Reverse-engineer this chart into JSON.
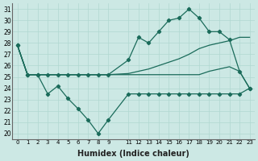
{
  "xlabel": "Humidex (Indice chaleur)",
  "bg_color": "#cce8e4",
  "line_color": "#1a6b5a",
  "grid_color": "#b0d8d0",
  "xlim": [
    -0.5,
    23.5
  ],
  "ylim": [
    19.5,
    31.5
  ],
  "yticks": [
    20,
    21,
    22,
    23,
    24,
    25,
    26,
    27,
    28,
    29,
    30,
    31
  ],
  "xticks": [
    0,
    1,
    2,
    3,
    4,
    5,
    6,
    7,
    8,
    9,
    11,
    12,
    13,
    14,
    15,
    16,
    17,
    18,
    19,
    20,
    21,
    22,
    23
  ],
  "s1_x": [
    0,
    1,
    2,
    3,
    4,
    5,
    6,
    7,
    8,
    9,
    11,
    12,
    13,
    14,
    15,
    16,
    17,
    18,
    19,
    20,
    21,
    22,
    23
  ],
  "s1_y": [
    27.8,
    25.2,
    25.2,
    25.2,
    25.2,
    25.2,
    25.2,
    25.2,
    25.2,
    25.2,
    25.3,
    25.5,
    25.7,
    26.0,
    26.3,
    26.6,
    27.0,
    27.5,
    27.8,
    28.0,
    28.2,
    28.5,
    28.5
  ],
  "s2_x": [
    0,
    1,
    2,
    3,
    4,
    5,
    6,
    7,
    8,
    9,
    11,
    12,
    13,
    14,
    15,
    16,
    17,
    18,
    19,
    20,
    21,
    22,
    23
  ],
  "s2_y": [
    27.8,
    25.2,
    25.2,
    25.2,
    25.2,
    25.2,
    25.2,
    25.2,
    25.2,
    25.2,
    25.2,
    25.2,
    25.2,
    25.2,
    25.2,
    25.2,
    25.2,
    25.2,
    25.5,
    25.7,
    25.9,
    25.5,
    24.0
  ],
  "s3_x": [
    0,
    1,
    2,
    3,
    4,
    5,
    6,
    7,
    8,
    9,
    11,
    12,
    13,
    14,
    15,
    16,
    17,
    18,
    19,
    20,
    21,
    22,
    23
  ],
  "s3_y": [
    27.8,
    25.2,
    25.2,
    23.5,
    24.2,
    23.1,
    22.2,
    21.2,
    20.0,
    21.2,
    23.5,
    23.5,
    23.5,
    23.5,
    23.5,
    23.5,
    23.5,
    23.5,
    23.5,
    23.5,
    23.5,
    23.5,
    24.0
  ],
  "s4_x": [
    0,
    1,
    2,
    3,
    4,
    5,
    6,
    7,
    8,
    9,
    11,
    12,
    13,
    14,
    15,
    16,
    17,
    18,
    19,
    20,
    21,
    22,
    23
  ],
  "s4_y": [
    27.8,
    25.2,
    25.2,
    25.2,
    25.2,
    25.2,
    25.2,
    25.2,
    25.2,
    25.2,
    26.5,
    28.5,
    28.0,
    29.0,
    30.0,
    30.2,
    31.0,
    30.2,
    29.0,
    29.0,
    28.3,
    25.5,
    24.0
  ]
}
